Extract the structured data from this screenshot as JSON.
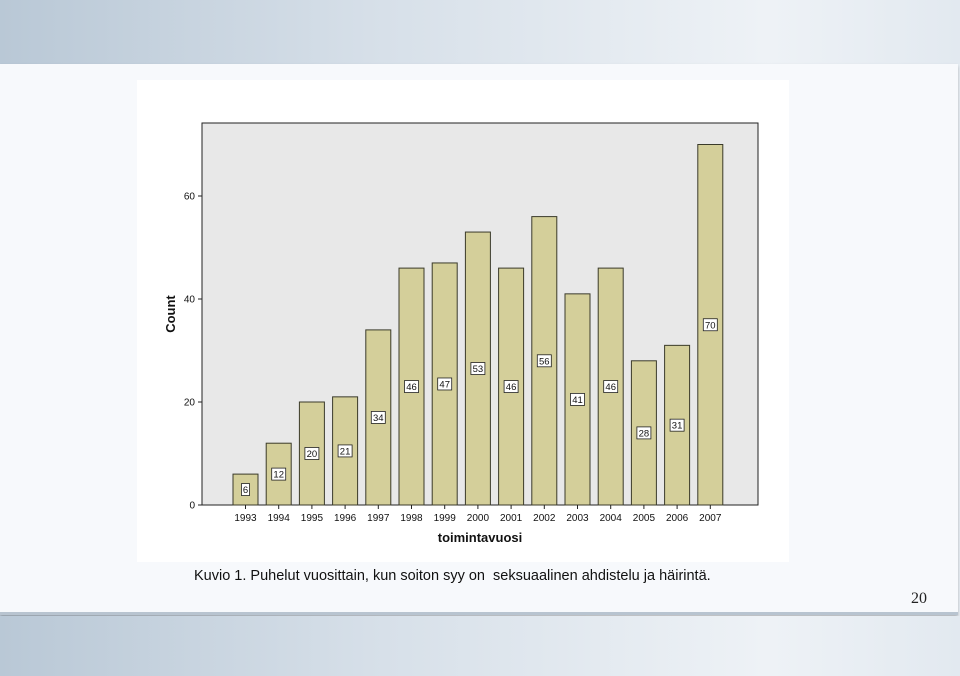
{
  "slide": {
    "caption": "Kuvio 1. Puhelut vuosittain, kun soiton syy on  seksuaalinen ahdistelu ja häirintä.",
    "page_number": "20"
  },
  "colors": {
    "bar_fill": "#d4cf9a",
    "bar_stroke": "#3a3a2a",
    "plot_background": "#e8e8e8"
  },
  "chart_data": {
    "type": "bar",
    "title": "",
    "xlabel": "toimintavuosi",
    "ylabel": "Count",
    "categories": [
      "1993",
      "1994",
      "1995",
      "1996",
      "1997",
      "1998",
      "1999",
      "2000",
      "2001",
      "2002",
      "2003",
      "2004",
      "2005",
      "2006",
      "2007"
    ],
    "values": [
      6,
      12,
      20,
      21,
      34,
      46,
      47,
      53,
      46,
      56,
      41,
      46,
      28,
      31,
      70
    ],
    "data_labels": [
      "6",
      "12",
      "20",
      "21",
      "34",
      "46",
      "47",
      "53",
      "46",
      "56",
      "41",
      "46",
      "28",
      "31",
      "70"
    ],
    "yticks": [
      0,
      20,
      40,
      60
    ],
    "ytick_labels": [
      "0",
      "20",
      "40",
      "60"
    ],
    "ylim": [
      0,
      74
    ],
    "grid": false,
    "legend": "none"
  }
}
